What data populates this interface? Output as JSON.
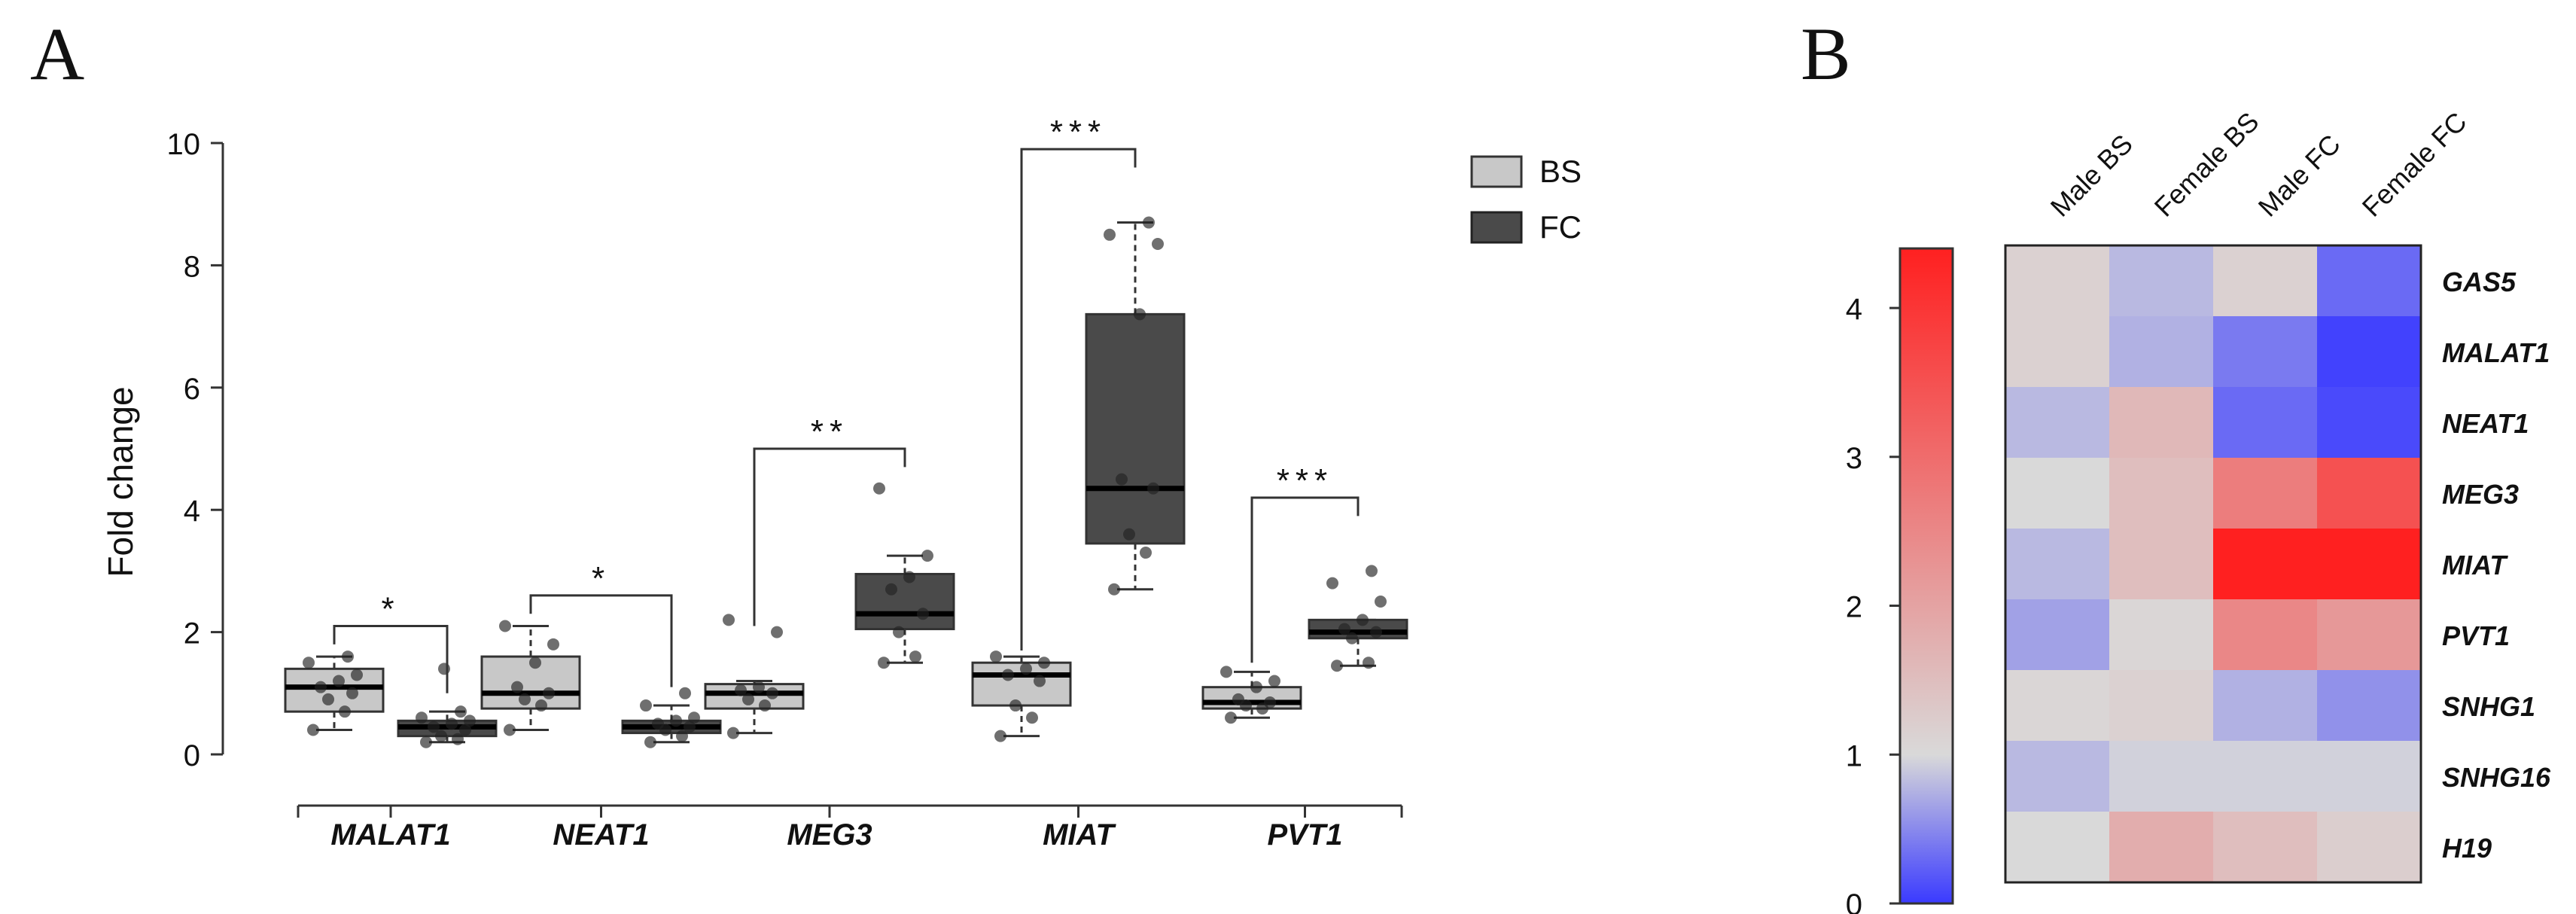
{
  "panel_a": {
    "label": "A",
    "legend": [
      {
        "name": "BS",
        "color": "#c8c8c8"
      },
      {
        "name": "FC",
        "color": "#4a4a4a"
      }
    ]
  },
  "panel_b": {
    "label": "B"
  },
  "chart_data": [
    {
      "type": "box",
      "title": "",
      "ylabel": "Fold change",
      "xlabel": "",
      "ylim": [
        0,
        10
      ],
      "yticks": [
        0,
        2,
        4,
        6,
        8,
        10
      ],
      "categories": [
        "MALAT1",
        "NEAT1",
        "MEG3",
        "MIAT",
        "PVT1"
      ],
      "series": [
        {
          "name": "BS",
          "color": "#c8c8c8",
          "boxes": [
            {
              "q1": 0.7,
              "median": 1.1,
              "q3": 1.4,
              "whisker_low": 0.4,
              "whisker_high": 1.6,
              "points": [
                0.4,
                0.7,
                0.9,
                1.0,
                1.1,
                1.2,
                1.3,
                1.5,
                1.6
              ]
            },
            {
              "q1": 0.75,
              "median": 1.0,
              "q3": 1.6,
              "whisker_low": 0.4,
              "whisker_high": 2.1,
              "points": [
                0.4,
                0.8,
                0.9,
                1.0,
                1.1,
                1.5,
                1.8,
                2.1
              ]
            },
            {
              "q1": 0.75,
              "median": 1.0,
              "q3": 1.15,
              "whisker_low": 0.35,
              "whisker_high": 1.2,
              "points": [
                0.35,
                0.8,
                0.9,
                1.0,
                1.05,
                1.1,
                2.0,
                2.2
              ]
            },
            {
              "q1": 0.8,
              "median": 1.3,
              "q3": 1.5,
              "whisker_low": 0.3,
              "whisker_high": 1.6,
              "points": [
                0.3,
                0.6,
                0.8,
                1.2,
                1.3,
                1.4,
                1.5,
                1.6
              ]
            },
            {
              "q1": 0.75,
              "median": 0.85,
              "q3": 1.1,
              "whisker_low": 0.6,
              "whisker_high": 1.35,
              "points": [
                0.6,
                0.75,
                0.8,
                0.85,
                0.9,
                1.1,
                1.2,
                1.35
              ]
            }
          ]
        },
        {
          "name": "FC",
          "color": "#4a4a4a",
          "boxes": [
            {
              "q1": 0.3,
              "median": 0.45,
              "q3": 0.55,
              "whisker_low": 0.2,
              "whisker_high": 0.7,
              "points": [
                0.2,
                0.25,
                0.3,
                0.4,
                0.45,
                0.5,
                0.55,
                0.6,
                0.7,
                1.4
              ]
            },
            {
              "q1": 0.35,
              "median": 0.45,
              "q3": 0.55,
              "whisker_low": 0.2,
              "whisker_high": 0.8,
              "points": [
                0.2,
                0.3,
                0.4,
                0.45,
                0.5,
                0.55,
                0.6,
                0.8,
                1.0
              ]
            },
            {
              "q1": 2.05,
              "median": 2.3,
              "q3": 2.95,
              "whisker_low": 1.5,
              "whisker_high": 3.25,
              "points": [
                1.5,
                1.6,
                2.0,
                2.3,
                2.7,
                2.9,
                3.25,
                4.35
              ]
            },
            {
              "q1": 3.45,
              "median": 4.35,
              "q3": 7.2,
              "whisker_low": 2.7,
              "whisker_high": 8.7,
              "points": [
                2.7,
                3.3,
                3.6,
                4.35,
                4.5,
                7.2,
                8.35,
                8.5,
                8.7
              ]
            },
            {
              "q1": 1.9,
              "median": 2.0,
              "q3": 2.2,
              "whisker_low": 1.45,
              "whisker_high": 2.2,
              "points": [
                1.45,
                1.5,
                1.9,
                2.0,
                2.05,
                2.2,
                2.5,
                2.8,
                3.0
              ]
            }
          ]
        }
      ],
      "significance": [
        {
          "category": "MALAT1",
          "label": "*",
          "bs_top": 1.8,
          "fc_top": 1.0
        },
        {
          "category": "NEAT1",
          "label": "*",
          "bs_top": 2.3,
          "fc_top": 1.1
        },
        {
          "category": "MEG3",
          "label": "**",
          "bs_top": 2.1,
          "fc_top": 4.7
        },
        {
          "category": "MIAT",
          "label": "***",
          "bs_top": 1.7,
          "fc_top": 9.6
        },
        {
          "category": "PVT1",
          "label": "***",
          "bs_top": 1.5,
          "fc_top": 3.9
        }
      ]
    },
    {
      "type": "heatmap",
      "columns": [
        "Male BS",
        "Female BS",
        "Male FC",
        "Female FC"
      ],
      "rows": [
        "GAS5",
        "MALAT1",
        "NEAT1",
        "MEG3",
        "MIAT",
        "PVT1",
        "SNHG1",
        "SNHG16",
        "H19"
      ],
      "values": [
        [
          1.15,
          0.8,
          1.15,
          0.3
        ],
        [
          1.15,
          0.75,
          0.4,
          0.05
        ],
        [
          0.8,
          1.6,
          0.3,
          0.1
        ],
        [
          1.0,
          1.5,
          2.7,
          3.5
        ],
        [
          0.8,
          1.5,
          4.4,
          4.4
        ],
        [
          0.65,
          1.05,
          2.5,
          2.2
        ],
        [
          1.05,
          1.15,
          0.75,
          0.55
        ],
        [
          0.8,
          0.95,
          0.95,
          0.95
        ],
        [
          1.0,
          1.8,
          1.5,
          1.2
        ]
      ],
      "colorbar": {
        "min": 0,
        "max": 4.4,
        "mid": 1.0,
        "ticks": [
          0,
          1,
          2,
          3,
          4
        ],
        "low_color": "#3a3aff",
        "mid_color": "#d9d9d9",
        "high_color": "#ff2020"
      }
    }
  ]
}
